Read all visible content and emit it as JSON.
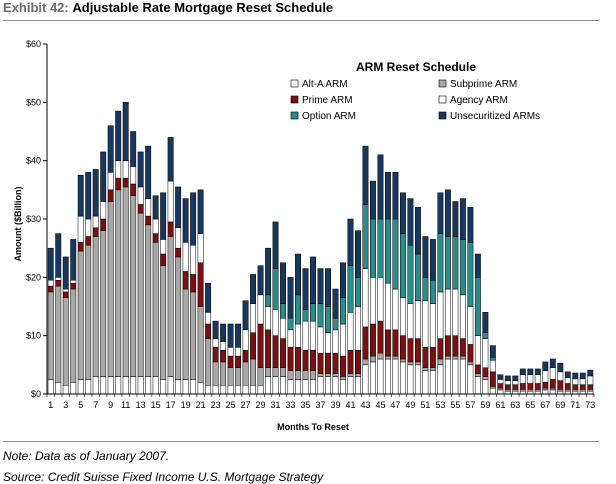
{
  "header": {
    "exhibit_label": "Exhibit 42:",
    "title": "Adjustable Rate Mortgage Reset Schedule"
  },
  "footer": {
    "note": "Note: Data as of January 2007.",
    "source": "Source: Credit Suisse Fixed Income U.S. Mortgage Strategy"
  },
  "chart_data": {
    "type": "bar",
    "stacked": true,
    "title": "ARM Reset Schedule",
    "xlabel": "Months To Reset",
    "ylabel": "Amount ($Billion)",
    "ylim": [
      0,
      60
    ],
    "yticks": [
      0,
      10,
      20,
      30,
      40,
      50,
      60
    ],
    "ytick_labels": [
      "$0",
      "$10",
      "$20",
      "$30",
      "$40",
      "$50",
      "$60"
    ],
    "grid": false,
    "legend_position": "top-right",
    "x": [
      1,
      2,
      3,
      4,
      5,
      6,
      7,
      8,
      9,
      10,
      11,
      12,
      13,
      14,
      15,
      16,
      17,
      18,
      19,
      20,
      21,
      22,
      23,
      24,
      25,
      26,
      27,
      28,
      29,
      30,
      31,
      32,
      33,
      34,
      35,
      36,
      37,
      38,
      39,
      40,
      41,
      42,
      43,
      44,
      45,
      46,
      47,
      48,
      49,
      50,
      51,
      52,
      53,
      54,
      55,
      56,
      57,
      58,
      59,
      60,
      61,
      62,
      63,
      64,
      65,
      66,
      67,
      68,
      69,
      70,
      71,
      72,
      73
    ],
    "xtick_labels": [
      "1",
      "3",
      "5",
      "7",
      "9",
      "11",
      "13",
      "15",
      "17",
      "19",
      "21",
      "23",
      "25",
      "27",
      "29",
      "31",
      "33",
      "35",
      "37",
      "39",
      "41",
      "43",
      "45",
      "47",
      "49",
      "51",
      "53",
      "55",
      "57",
      "59",
      "61",
      "63",
      "65",
      "67",
      "69",
      "71",
      "73"
    ],
    "colors": {
      "alt_a": "#ffffff",
      "subprime": "#a8a8a8",
      "prime": "#7a1010",
      "agency": "#ffffff",
      "option": "#2e8b8b",
      "unsecuritized": "#17375e"
    },
    "series": [
      {
        "name": "Alt-A ARM",
        "key": "alt_a",
        "values": [
          2.5,
          2,
          1.5,
          2,
          2.5,
          2.5,
          3,
          3,
          3,
          3,
          3,
          3,
          3,
          3,
          3,
          2.5,
          3,
          2.5,
          2.5,
          2.5,
          2,
          1.5,
          1.5,
          1.5,
          1.5,
          1.5,
          1.5,
          1.5,
          1.5,
          3,
          3,
          3,
          2.5,
          2.5,
          2.5,
          2.5,
          3,
          3,
          3,
          2.5,
          3,
          3,
          5,
          5.5,
          6,
          6,
          6,
          5.5,
          5,
          5,
          4,
          4,
          5,
          6,
          6,
          6,
          5,
          3,
          2.5,
          1,
          0.7,
          0.5,
          0.5,
          0.5,
          0.5,
          0.5,
          0.7,
          0.7,
          0.5,
          0.5,
          0.5,
          0.5,
          0.5
        ]
      },
      {
        "name": "Subprime ARM",
        "key": "subprime",
        "values": [
          15,
          16.5,
          15,
          16,
          22,
          23,
          24,
          25,
          30,
          32,
          32.5,
          31,
          28,
          26,
          23,
          19.5,
          24,
          21,
          15.5,
          15,
          13,
          8,
          4,
          4,
          3,
          3,
          4,
          4.5,
          3,
          1.5,
          1.5,
          1.5,
          1.5,
          1.5,
          1.5,
          1.5,
          0.5,
          0.5,
          0.5,
          0.5,
          0.5,
          0.5,
          1,
          1,
          1,
          0.5,
          0.5,
          0.5,
          0.5,
          0.5,
          0.5,
          0.5,
          1,
          0.5,
          0.5,
          0.5,
          0.5,
          0.5,
          0.5,
          0.3,
          0.3,
          0.3,
          0.3,
          0.3,
          0.3,
          0.3,
          0.3,
          0.3,
          0.3,
          0.3,
          0.3,
          0.3,
          0.3
        ]
      },
      {
        "name": "Prime ARM",
        "key": "prime",
        "values": [
          1,
          1,
          1,
          1,
          1.5,
          1.5,
          1.5,
          2,
          2,
          2,
          1.5,
          2,
          1.5,
          1.5,
          1.5,
          2,
          2.5,
          1.5,
          3,
          3,
          7.5,
          2.5,
          2.5,
          2,
          2,
          2,
          2,
          4.5,
          7.5,
          6.5,
          5.5,
          5,
          4,
          4,
          3.5,
          3.5,
          3.5,
          3.5,
          3.5,
          3.5,
          4,
          4,
          5.5,
          5.5,
          5.5,
          4.5,
          4.5,
          4,
          4,
          4,
          3.5,
          3.5,
          3.5,
          3.5,
          3.5,
          3,
          3,
          1.5,
          1.5,
          2.5,
          0.8,
          0.8,
          0.8,
          1,
          1,
          1,
          1,
          1.5,
          1.5,
          1,
          0.8,
          0.8,
          0.8
        ]
      },
      {
        "name": "Agency ARM",
        "key": "agency",
        "values": [
          1,
          0.5,
          0.5,
          0.5,
          4.5,
          3,
          2,
          3,
          3,
          3,
          3,
          3,
          3,
          3,
          2.5,
          2.5,
          7,
          3.5,
          5,
          5,
          5,
          2,
          1.5,
          1.5,
          1.5,
          1.5,
          3.5,
          5,
          5,
          4,
          4.5,
          3.5,
          3,
          4,
          5,
          5,
          4.5,
          3.5,
          4,
          5.5,
          6.5,
          7.5,
          10,
          8,
          7.5,
          8,
          7,
          6.5,
          6,
          6.5,
          8,
          7.5,
          8,
          8,
          8,
          7.5,
          6.5,
          5,
          5,
          2,
          0.7,
          0.7,
          0.7,
          1.5,
          1.5,
          1.5,
          2,
          2,
          1.5,
          1,
          1,
          1,
          1.5
        ]
      },
      {
        "name": "Option ARM",
        "key": "option",
        "values": [
          0,
          0,
          0,
          0,
          0,
          0,
          0,
          0,
          0,
          0,
          0,
          0,
          0,
          0,
          0,
          0,
          0,
          0,
          0,
          0,
          0,
          0,
          0,
          0,
          0,
          0,
          0,
          0,
          0,
          2,
          7,
          2.5,
          2,
          5,
          2,
          3,
          4,
          4.5,
          2,
          4.5,
          8,
          5,
          11,
          10,
          10,
          11,
          12,
          11,
          10,
          8,
          4,
          4,
          10,
          9,
          9,
          9.5,
          11,
          10,
          1,
          0.5,
          0,
          0,
          0,
          0,
          0,
          0,
          0,
          0,
          0,
          0,
          0,
          0,
          0
        ]
      },
      {
        "name": "Unsecuritized ARMs",
        "key": "unsecuritized",
        "values": [
          5.5,
          7.5,
          5.5,
          7,
          7,
          8,
          8,
          8.5,
          8,
          8.5,
          10,
          6,
          6,
          9,
          4,
          8,
          7.5,
          7,
          7.5,
          9,
          7.5,
          5,
          3,
          3,
          4,
          4,
          5,
          5,
          5,
          8,
          8,
          7,
          7,
          7,
          7,
          8,
          6,
          6.5,
          5,
          6,
          8,
          8,
          10,
          6.5,
          11,
          8,
          8,
          7,
          8,
          8,
          7,
          7,
          7,
          8,
          6,
          7,
          6,
          4,
          3.5,
          2,
          0.8,
          0.8,
          0.8,
          1,
          1,
          1,
          1.5,
          1.5,
          1.5,
          1,
          1,
          1,
          1
        ]
      }
    ]
  }
}
